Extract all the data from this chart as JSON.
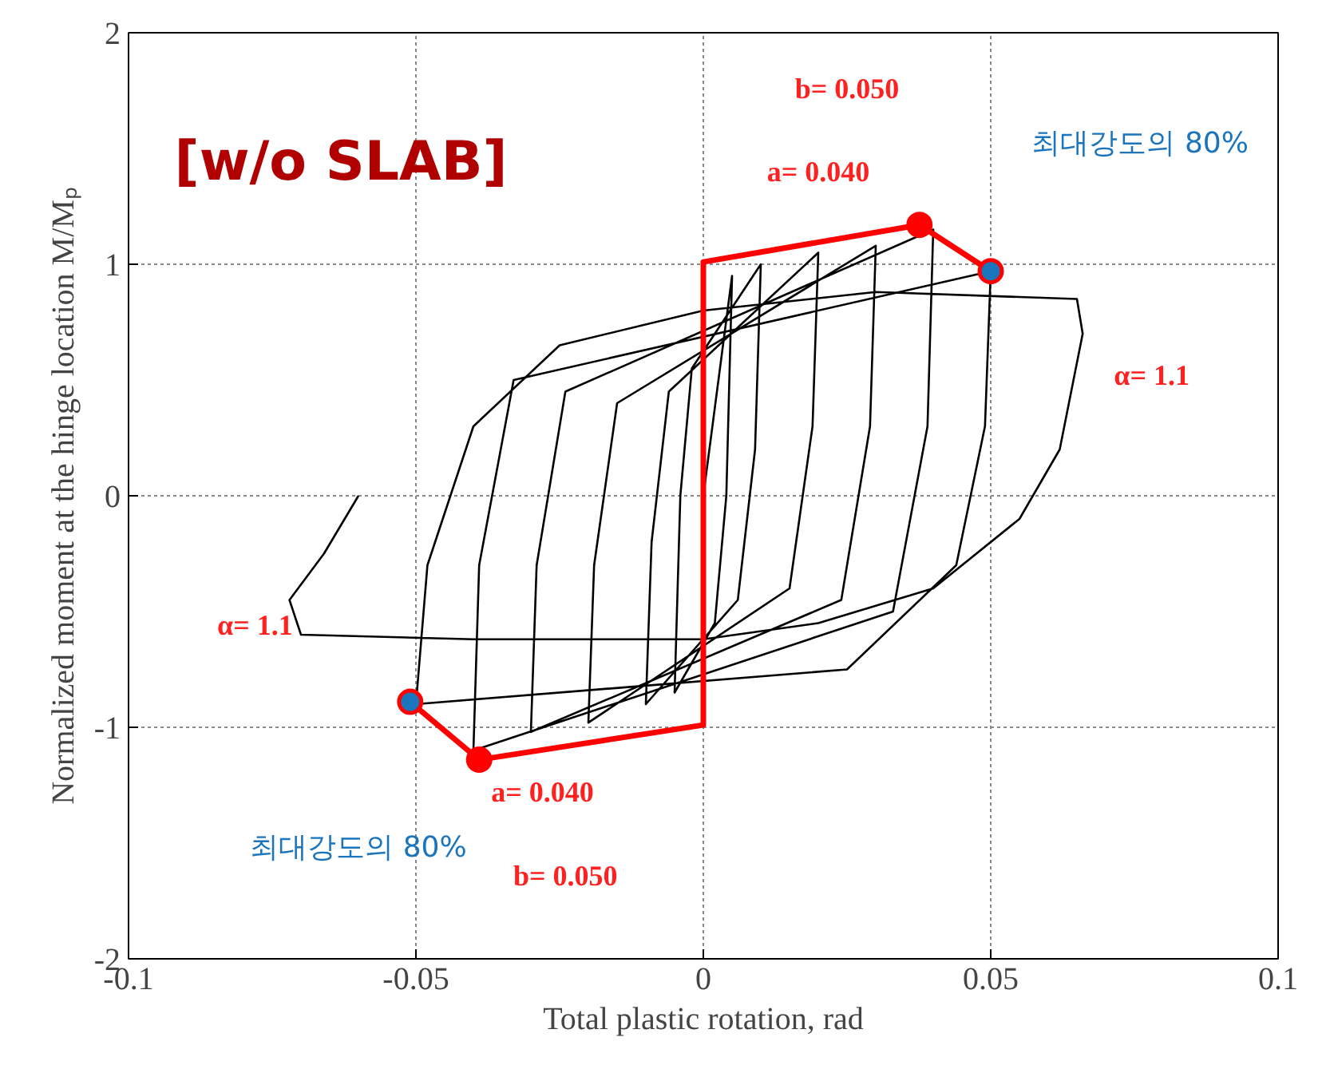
{
  "chart_data": {
    "type": "line",
    "xlabel": "Total plastic rotation, rad",
    "ylabel": "Normalized moment at the hinge location M/Mₚ",
    "xlim": [
      -0.1,
      0.1
    ],
    "ylim": [
      -2,
      2
    ],
    "xticks": [
      -0.1,
      -0.05,
      0,
      0.05,
      0.1
    ],
    "yticks": [
      -2,
      -1,
      0,
      1,
      2
    ],
    "grid": true,
    "line_style": "solid",
    "series": [
      {
        "color": "#000000",
        "x": [
          0,
          0.005,
          0.004,
          0.002,
          -0.005,
          -0.004,
          -0.002,
          0.01,
          0.009,
          0.006,
          -0.01,
          -0.009,
          -0.006,
          0.02,
          0.019,
          0.015,
          -0.02,
          -0.019,
          -0.015,
          0.03,
          0.029,
          0.024,
          -0.03,
          -0.029,
          -0.024,
          0.04,
          0.039,
          0.033,
          -0.04,
          -0.039,
          -0.033,
          0.05,
          0.049,
          0.044,
          0.025,
          -0.05,
          -0.048,
          -0.04,
          -0.025,
          0,
          0.03,
          0.065,
          0.066,
          0.062,
          0.055,
          0.04,
          0.02,
          0,
          -0.04,
          -0.07,
          -0.072,
          -0.066,
          -0.06
        ],
        "values": [
          0,
          0.95,
          0,
          -0.55,
          -0.85,
          0,
          0.55,
          1.0,
          0.2,
          -0.45,
          -0.9,
          -0.2,
          0.45,
          1.05,
          0.3,
          -0.4,
          -0.98,
          -0.3,
          0.4,
          1.08,
          0.3,
          -0.45,
          -1.02,
          -0.3,
          0.45,
          1.15,
          0.3,
          -0.5,
          -1.1,
          -0.3,
          0.5,
          0.97,
          0.3,
          -0.3,
          -0.75,
          -0.9,
          -0.3,
          0.3,
          0.65,
          0.8,
          0.88,
          0.85,
          0.7,
          0.2,
          -0.1,
          -0.4,
          -0.55,
          -0.62,
          -0.62,
          -0.6,
          -0.45,
          -0.25,
          0.0
        ]
      },
      {
        "color": "#ff0000",
        "x": [
          -0.051,
          -0.039,
          0,
          0,
          0.0376,
          0.05
        ],
        "values": [
          -0.89,
          -1.14,
          -0.99,
          1.01,
          1.17,
          0.97
        ]
      },
      {
        "type": "scatter",
        "marker": "circle",
        "color": "#ff0000",
        "x": [
          -0.039,
          0.0376
        ],
        "values": [
          -1.14,
          1.17
        ]
      },
      {
        "type": "scatter",
        "marker": "circle",
        "color": "#1b75bc",
        "x": [
          -0.051,
          0.05
        ],
        "values": [
          -0.89,
          0.97
        ]
      }
    ],
    "annotations": [
      "[w/o SLAB]",
      "b= 0.050",
      "a= 0.040",
      "최대강도의 80%",
      "α= 1.1",
      "α= 1.1",
      "a= 0.040",
      "b= 0.050",
      "최대강도의 80%"
    ]
  }
}
